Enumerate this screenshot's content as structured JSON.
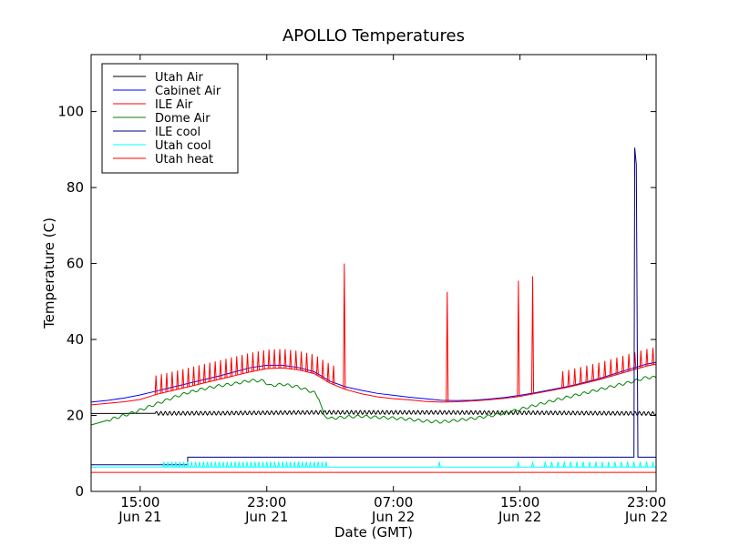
{
  "chart_data": {
    "type": "line",
    "title": "APOLLO Temperatures",
    "xlabel": "Date (GMT)",
    "ylabel": "Temperature (C)",
    "x_unit": "hours since Jun 21 00:00 GMT",
    "xlim": [
      11.9,
      47.6
    ],
    "ylim": [
      0,
      115
    ],
    "yticks": [
      0,
      20,
      40,
      60,
      80,
      100
    ],
    "xticks": [
      {
        "x": 15,
        "time": "15:00",
        "date": "Jun 21"
      },
      {
        "x": 23,
        "time": "23:00",
        "date": "Jun 21"
      },
      {
        "x": 31,
        "time": "07:00",
        "date": "Jun 22"
      },
      {
        "x": 39,
        "time": "15:00",
        "date": "Jun 22"
      },
      {
        "x": 47,
        "time": "23:00",
        "date": "Jun 22"
      }
    ],
    "legend_position": "top-left",
    "series": [
      {
        "name": "Utah Air",
        "color": "#000000",
        "points": [
          [
            11.9,
            20.5
          ],
          [
            20,
            20.6
          ],
          [
            26,
            20.8
          ],
          [
            33,
            20.8
          ],
          [
            40,
            20.7
          ],
          [
            47.6,
            20.5
          ]
        ],
        "ripple": {
          "from": 16,
          "to": 47.6,
          "amp": 0.5,
          "period": 0.28
        }
      },
      {
        "name": "Cabinet Air",
        "color": "#0000ff",
        "points": [
          [
            11.9,
            23.5
          ],
          [
            13,
            24
          ],
          [
            14,
            24.6
          ],
          [
            15,
            25.4
          ],
          [
            16,
            26.4
          ],
          [
            17,
            27.4
          ],
          [
            18,
            28.4
          ],
          [
            19,
            29.4
          ],
          [
            20,
            30.4
          ],
          [
            21,
            31.5
          ],
          [
            22,
            32.6
          ],
          [
            23,
            33.2
          ],
          [
            24,
            33.2
          ],
          [
            25,
            32.6
          ],
          [
            26,
            31.5
          ],
          [
            27,
            29
          ],
          [
            28,
            27.5
          ],
          [
            29,
            26.6
          ],
          [
            30,
            25.8
          ],
          [
            31,
            25.3
          ],
          [
            32,
            24.8
          ],
          [
            33,
            24.4
          ],
          [
            34,
            24
          ],
          [
            35,
            23.9
          ],
          [
            36,
            24
          ],
          [
            37,
            24.3
          ],
          [
            38,
            24.7
          ],
          [
            39,
            25.3
          ],
          [
            40,
            26
          ],
          [
            41,
            26.8
          ],
          [
            42,
            27.6
          ],
          [
            43,
            28.6
          ],
          [
            44,
            29.7
          ],
          [
            45,
            31
          ],
          [
            46,
            32.3
          ],
          [
            47,
            33.5
          ],
          [
            47.6,
            34
          ]
        ]
      },
      {
        "name": "ILE Air",
        "color": "#ff0000",
        "points": [
          [
            11.9,
            22.8
          ],
          [
            13,
            23.2
          ],
          [
            14,
            23.6
          ],
          [
            15,
            24.2
          ],
          [
            16,
            25.5
          ],
          [
            17,
            26.5
          ],
          [
            18,
            27.5
          ],
          [
            19,
            28.5
          ],
          [
            20,
            29.5
          ],
          [
            21,
            30.5
          ],
          [
            22,
            31.5
          ],
          [
            23,
            32.3
          ],
          [
            24,
            32.5
          ],
          [
            25,
            32
          ],
          [
            26,
            31
          ],
          [
            27,
            28.5
          ],
          [
            28,
            26.8
          ],
          [
            29,
            25.7
          ],
          [
            30,
            24.9
          ],
          [
            31,
            24.4
          ],
          [
            32,
            24.1
          ],
          [
            33,
            23.7
          ],
          [
            34,
            23.5
          ],
          [
            35,
            23.6
          ],
          [
            36,
            23.8
          ],
          [
            37,
            24.1
          ],
          [
            38,
            24.5
          ],
          [
            39,
            25
          ],
          [
            40,
            25.8
          ],
          [
            41,
            26.6
          ],
          [
            42,
            27.4
          ],
          [
            43,
            28.4
          ],
          [
            44,
            29.4
          ],
          [
            45,
            30.6
          ],
          [
            46,
            31.8
          ],
          [
            47,
            33
          ],
          [
            47.6,
            33.5
          ]
        ],
        "spikes": {
          "from": 16,
          "to": 27.3,
          "every": 0.34,
          "height": 5
        },
        "extra_spikes": [
          [
            27.9,
            33
          ],
          [
            34.4,
            29
          ],
          [
            38.9,
            30.5
          ],
          [
            39.8,
            31
          ]
        ],
        "spikes2": {
          "from": 41.7,
          "to": 47.6,
          "every": 0.38,
          "height": 4.5
        }
      },
      {
        "name": "Dome Air",
        "color": "#008000",
        "points": [
          [
            11.9,
            17.5
          ],
          [
            13,
            18.8
          ],
          [
            14,
            20
          ],
          [
            15,
            21.4
          ],
          [
            16,
            23
          ],
          [
            17,
            24.6
          ],
          [
            18,
            26
          ],
          [
            19,
            27
          ],
          [
            20,
            27.8
          ],
          [
            21,
            28.4
          ],
          [
            22,
            29.2
          ],
          [
            22.8,
            29.1
          ],
          [
            23.2,
            27.8
          ],
          [
            24,
            28.2
          ],
          [
            25,
            27.5
          ],
          [
            26,
            26
          ],
          [
            26.3,
            24.5
          ],
          [
            26.6,
            20
          ],
          [
            27,
            19.2
          ],
          [
            28,
            19.6
          ],
          [
            29,
            19.8
          ],
          [
            30,
            19.5
          ],
          [
            31,
            19.3
          ],
          [
            32,
            19
          ],
          [
            33,
            18.5
          ],
          [
            34,
            18.3
          ],
          [
            35,
            18.7
          ],
          [
            36,
            19.2
          ],
          [
            37,
            19.8
          ],
          [
            38,
            20.6
          ],
          [
            39,
            21.6
          ],
          [
            40,
            22.7
          ],
          [
            41,
            23.8
          ],
          [
            42,
            24.8
          ],
          [
            43,
            25.8
          ],
          [
            44,
            26.8
          ],
          [
            45,
            27.8
          ],
          [
            46,
            28.8
          ],
          [
            47,
            30
          ],
          [
            47.6,
            30
          ]
        ],
        "ripple": {
          "from": 13,
          "to": 47.6,
          "amp": 0.35,
          "period": 0.55
        }
      },
      {
        "name": "ILE cool",
        "color": "#000080",
        "points": [
          [
            11.9,
            7
          ],
          [
            18,
            7
          ],
          [
            18,
            9
          ],
          [
            46.2,
            9
          ],
          [
            46.25,
            90.5
          ],
          [
            46.35,
            86
          ],
          [
            46.45,
            9
          ],
          [
            47.6,
            9
          ]
        ]
      },
      {
        "name": "Utah cool",
        "color": "#00ffff",
        "points": [
          [
            11.9,
            6.4
          ],
          [
            47.6,
            6.4
          ]
        ],
        "spikes": {
          "from": 16.5,
          "to": 26.8,
          "every": 0.25,
          "height": 1.4
        },
        "extra_spikes": [
          [
            33.9,
            1.4
          ],
          [
            38.9,
            1.4
          ],
          [
            39.8,
            1.4
          ]
        ],
        "spikes2": {
          "from": 40.6,
          "to": 47.6,
          "every": 0.4,
          "height": 1.4
        }
      },
      {
        "name": "Utah heat",
        "color": "#ff0000",
        "points": [
          [
            11.9,
            5
          ],
          [
            47.6,
            5
          ]
        ]
      }
    ]
  }
}
